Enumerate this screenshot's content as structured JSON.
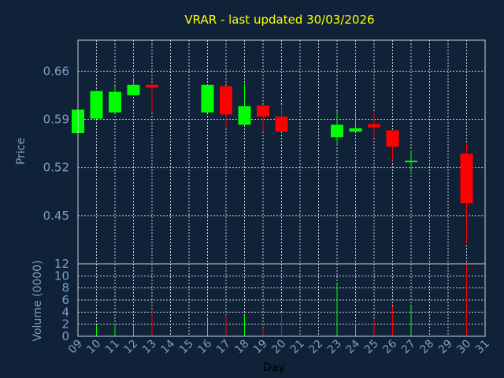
{
  "chart_data": {
    "type": "candlestick",
    "title": "VRAR - last updated 30/03/2026",
    "xlabel": "Day",
    "price": {
      "ylabel": "Price",
      "yticks": [
        0.45,
        0.52,
        0.59,
        0.66
      ],
      "ytick_labels": [
        "0.45",
        "0.52",
        "0.59",
        "0.66"
      ],
      "ylim": [
        0.38,
        0.705
      ]
    },
    "volume": {
      "ylabel": "Volume (0000)",
      "yticks": [
        0,
        2,
        4,
        6,
        8,
        10,
        12
      ],
      "ylim": [
        0,
        12
      ]
    },
    "x_ticks": [
      "09",
      "10",
      "11",
      "12",
      "13",
      "14",
      "15",
      "16",
      "17",
      "18",
      "19",
      "20",
      "21",
      "22",
      "23",
      "24",
      "25",
      "26",
      "27",
      "28",
      "29",
      "30",
      "31"
    ],
    "grid": true,
    "up_color": "#00ff00",
    "down_color": "#ff0000",
    "candles": [
      {
        "day": 9,
        "open": 0.57,
        "close": 0.604,
        "high": 0.604,
        "low": 0.57,
        "volume": 0.0
      },
      {
        "day": 10,
        "open": 0.591,
        "close": 0.631,
        "high": 0.631,
        "low": 0.591,
        "volume": 1.8
      },
      {
        "day": 11,
        "open": 0.6,
        "close": 0.63,
        "high": 0.64,
        "low": 0.6,
        "volume": 2.1
      },
      {
        "day": 12,
        "open": 0.625,
        "close": 0.64,
        "high": 0.65,
        "low": 0.625,
        "volume": 1.8
      },
      {
        "day": 13,
        "open": 0.64,
        "close": 0.636,
        "high": 0.642,
        "low": 0.6,
        "volume": 4.3
      },
      {
        "day": 16,
        "open": 0.6,
        "close": 0.64,
        "high": 0.64,
        "low": 0.6,
        "volume": 3.1
      },
      {
        "day": 17,
        "open": 0.638,
        "close": 0.597,
        "high": 0.638,
        "low": 0.578,
        "volume": 3.5
      },
      {
        "day": 18,
        "open": 0.582,
        "close": 0.609,
        "high": 0.642,
        "low": 0.582,
        "volume": 3.5
      },
      {
        "day": 19,
        "open": 0.61,
        "close": 0.594,
        "high": 0.61,
        "low": 0.573,
        "volume": 1.4
      },
      {
        "day": 20,
        "open": 0.594,
        "close": 0.572,
        "high": 0.61,
        "low": 0.572,
        "volume": 3.7
      },
      {
        "day": 23,
        "open": 0.564,
        "close": 0.582,
        "high": 0.602,
        "low": 0.552,
        "volume": 8.7
      },
      {
        "day": 24,
        "open": 0.572,
        "close": 0.577,
        "high": 0.601,
        "low": 0.572,
        "volume": 1.8
      },
      {
        "day": 25,
        "open": 0.583,
        "close": 0.578,
        "high": 0.6,
        "low": 0.564,
        "volume": 2.6
      },
      {
        "day": 26,
        "open": 0.574,
        "close": 0.55,
        "high": 0.574,
        "low": 0.53,
        "volume": 5.0
      },
      {
        "day": 27,
        "open": 0.53,
        "close": 0.53,
        "high": 0.545,
        "low": 0.514,
        "volume": 5.0
      },
      {
        "day": 30,
        "open": 0.54,
        "close": 0.468,
        "high": 0.555,
        "low": 0.41,
        "volume": 12.0
      }
    ]
  }
}
